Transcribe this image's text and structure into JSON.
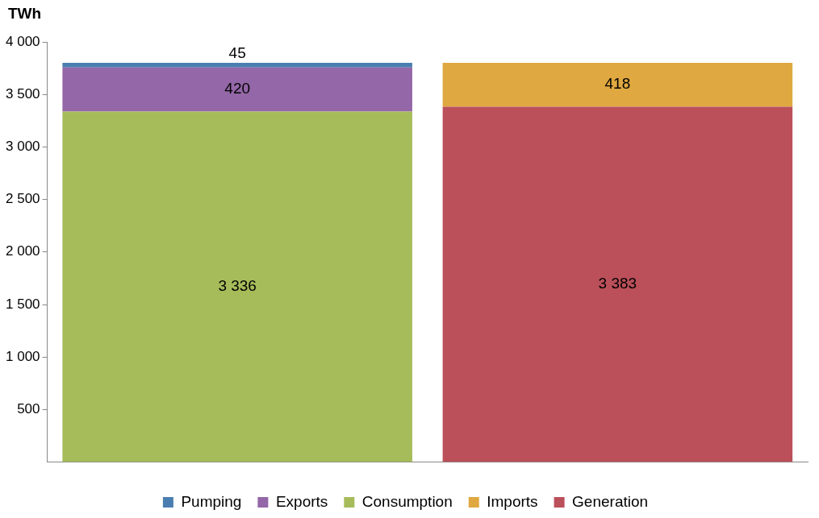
{
  "chart_data": {
    "type": "bar",
    "ylabel": "TWh",
    "categories": [
      null,
      null
    ],
    "stacked": true,
    "ylim": [
      0,
      4000
    ],
    "yticks": [
      {
        "value": 500,
        "label": "500"
      },
      {
        "value": 1000,
        "label": "1 000"
      },
      {
        "value": 1500,
        "label": "1 500"
      },
      {
        "value": 2000,
        "label": "2 000"
      },
      {
        "value": 2500,
        "label": "2 500"
      },
      {
        "value": 3000,
        "label": "3 000"
      },
      {
        "value": 3500,
        "label": "3 500"
      },
      {
        "value": 4000,
        "label": "4 000"
      }
    ],
    "grid": false,
    "legend": "bottom",
    "series": [
      {
        "name": "Consumption",
        "color": "#a6bc5a",
        "values": [
          3336,
          null
        ],
        "value_labels": [
          "3 336",
          null
        ]
      },
      {
        "name": "Exports",
        "color": "#9467a8",
        "values": [
          420,
          null
        ],
        "value_labels": [
          "420",
          null
        ]
      },
      {
        "name": "Pumping",
        "color": "#4a7eb0",
        "values": [
          45,
          null
        ],
        "value_labels": [
          "45",
          null
        ]
      },
      {
        "name": "Generation",
        "color": "#bb505a",
        "values": [
          null,
          3383
        ],
        "value_labels": [
          null,
          "3 383"
        ]
      },
      {
        "name": "Imports",
        "color": "#e0a840",
        "values": [
          null,
          418
        ],
        "value_labels": [
          null,
          "418"
        ]
      }
    ]
  }
}
